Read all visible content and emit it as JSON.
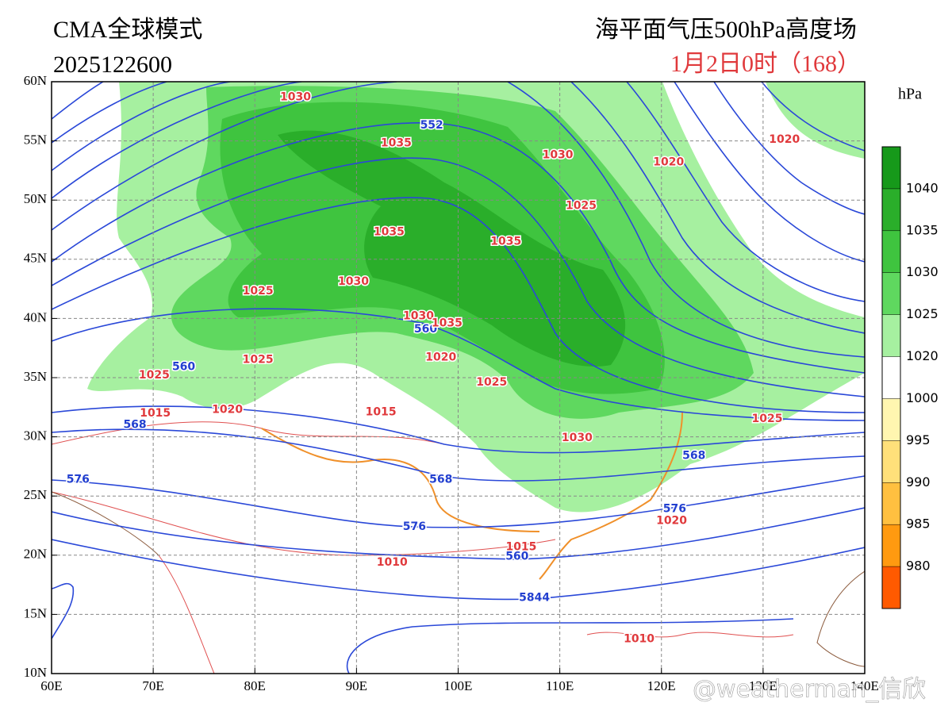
{
  "header": {
    "model": "CMA全球模式",
    "init_time": "2025122600",
    "title": "海平面气压500hPa高度场",
    "valid_time": "1月2日0时（168）"
  },
  "map": {
    "xlim": [
      60,
      140
    ],
    "ylim": [
      10,
      60
    ],
    "xticks": [
      {
        "value": 60,
        "label": "60E"
      },
      {
        "value": 70,
        "label": "70E"
      },
      {
        "value": 80,
        "label": "80E"
      },
      {
        "value": 90,
        "label": "90E"
      },
      {
        "value": 100,
        "label": "100E"
      },
      {
        "value": 110,
        "label": "110E"
      },
      {
        "value": 120,
        "label": "120E"
      },
      {
        "value": 130,
        "label": "130E"
      },
      {
        "value": 140,
        "label": "140E"
      }
    ],
    "yticks": [
      {
        "value": 10,
        "label": "10N"
      },
      {
        "value": 15,
        "label": "15N"
      },
      {
        "value": 20,
        "label": "20N"
      },
      {
        "value": 25,
        "label": "25N"
      },
      {
        "value": 30,
        "label": "30N"
      },
      {
        "value": 35,
        "label": "35N"
      },
      {
        "value": 40,
        "label": "40N"
      },
      {
        "value": 45,
        "label": "45N"
      },
      {
        "value": 50,
        "label": "50N"
      },
      {
        "value": 55,
        "label": "55N"
      },
      {
        "value": 60,
        "label": "60N"
      }
    ],
    "grid": true,
    "contour_labels": [
      {
        "label": "1030",
        "lon": 84.0,
        "lat": 58.7,
        "color": "#e0393c"
      },
      {
        "label": "552",
        "lon": 97.4,
        "lat": 56.3,
        "color": "#2340d0"
      },
      {
        "label": "1035",
        "lon": 93.9,
        "lat": 54.8,
        "color": "#e0393c"
      },
      {
        "label": "1030",
        "lon": 109.8,
        "lat": 53.8,
        "color": "#e0393c"
      },
      {
        "label": "1020",
        "lon": 120.7,
        "lat": 53.2,
        "color": "#e0393c"
      },
      {
        "label": "1020",
        "lon": 132.1,
        "lat": 55.1,
        "color": "#e0393c"
      },
      {
        "label": "1025",
        "lon": 112.1,
        "lat": 49.5,
        "color": "#e0393c"
      },
      {
        "label": "1035",
        "lon": 93.2,
        "lat": 47.3,
        "color": "#e0393c"
      },
      {
        "label": "1035",
        "lon": 104.7,
        "lat": 46.5,
        "color": "#e0393c"
      },
      {
        "label": "1030",
        "lon": 89.7,
        "lat": 43.1,
        "color": "#e0393c"
      },
      {
        "label": "1025",
        "lon": 80.3,
        "lat": 42.3,
        "color": "#e0393c"
      },
      {
        "label": "1030",
        "lon": 96.1,
        "lat": 40.2,
        "color": "#e0393c"
      },
      {
        "label": "560",
        "lon": 96.8,
        "lat": 39.1,
        "color": "#2340d0"
      },
      {
        "label": "1035",
        "lon": 98.9,
        "lat": 39.6,
        "color": "#e0393c"
      },
      {
        "label": "1020",
        "lon": 98.3,
        "lat": 36.7,
        "color": "#e0393c"
      },
      {
        "label": "1025",
        "lon": 80.3,
        "lat": 36.5,
        "color": "#e0393c"
      },
      {
        "label": "560",
        "lon": 73.0,
        "lat": 35.9,
        "color": "#2340d0"
      },
      {
        "label": "1025",
        "lon": 70.1,
        "lat": 35.2,
        "color": "#e0393c"
      },
      {
        "label": "1025",
        "lon": 103.3,
        "lat": 34.6,
        "color": "#e0393c"
      },
      {
        "label": "1015",
        "lon": 70.2,
        "lat": 32.0,
        "color": "#e0393c"
      },
      {
        "label": "1020",
        "lon": 77.3,
        "lat": 32.3,
        "color": "#e0393c"
      },
      {
        "label": "1015",
        "lon": 92.4,
        "lat": 32.1,
        "color": "#e0393c"
      },
      {
        "label": "568",
        "lon": 68.2,
        "lat": 31.0,
        "color": "#2340d0"
      },
      {
        "label": "1030",
        "lon": 111.7,
        "lat": 29.9,
        "color": "#e0393c"
      },
      {
        "label": "1025",
        "lon": 130.4,
        "lat": 31.5,
        "color": "#e0393c"
      },
      {
        "label": "568",
        "lon": 123.2,
        "lat": 28.4,
        "color": "#2340d0"
      },
      {
        "label": "576",
        "lon": 62.6,
        "lat": 26.4,
        "color": "#2340d0"
      },
      {
        "label": "568",
        "lon": 98.3,
        "lat": 26.4,
        "color": "#2340d0"
      },
      {
        "label": "576",
        "lon": 121.3,
        "lat": 23.9,
        "color": "#2340d0"
      },
      {
        "label": "1020",
        "lon": 121.0,
        "lat": 22.9,
        "color": "#e0393c"
      },
      {
        "label": "576",
        "lon": 95.7,
        "lat": 22.4,
        "color": "#2340d0"
      },
      {
        "label": "1015",
        "lon": 106.2,
        "lat": 20.7,
        "color": "#e0393c"
      },
      {
        "label": "560",
        "lon": 105.8,
        "lat": 19.9,
        "color": "#2340d0"
      },
      {
        "label": "1010",
        "lon": 93.5,
        "lat": 19.4,
        "color": "#e0393c"
      },
      {
        "label": "5844",
        "lon": 107.5,
        "lat": 16.4,
        "color": "#2340d0"
      },
      {
        "label": "1010",
        "lon": 117.8,
        "lat": 12.9,
        "color": "#e0393c"
      }
    ]
  },
  "colorbar": {
    "unit": "hPa",
    "band_colors": [
      "#16991a",
      "#2aae2a",
      "#3fc43f",
      "#5fd85f",
      "#a6f0a0",
      "#ffffff",
      "#fff6b0",
      "#ffe07a",
      "#ffc040",
      "#ff9a10",
      "#ff5a00"
    ],
    "ticks": [
      1040,
      1035,
      1030,
      1025,
      1020,
      1000,
      995,
      990,
      985,
      980
    ]
  },
  "watermark": "@weatherman_信欣"
}
